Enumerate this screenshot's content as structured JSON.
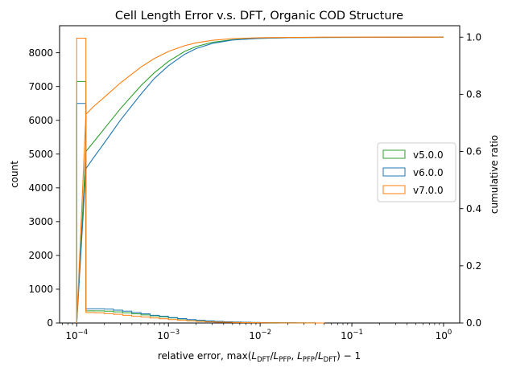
{
  "chart_data": {
    "type": "histogram",
    "title": "Cell Length Error v.s. DFT, Organic COD Structure",
    "xlabel": "relative error, max(L_DFT/L_PFP, L_PFP/L_DFT) − 1",
    "xlabel_parts": {
      "prefix": "relative error, max(",
      "L1": "L",
      "sub1": "DFT",
      "slash1": "/",
      "L2": "L",
      "sub2": "PFP",
      "comma": ", ",
      "L3": "L",
      "sub3": "PFP",
      "slash2": "/",
      "L4": "L",
      "sub4": "DFT",
      "suffix": ") − 1"
    },
    "ylabel": "count",
    "y2label": "cumulative ratio",
    "xscale": "log",
    "xlim": [
      6.5e-05,
      1.5
    ],
    "ylim": [
      0,
      8800
    ],
    "y2lim": [
      0,
      1.04
    ],
    "xticks": [
      {
        "value": 0.0001,
        "base": "10",
        "exp": "−4"
      },
      {
        "value": 0.001,
        "base": "10",
        "exp": "−3"
      },
      {
        "value": 0.01,
        "base": "10",
        "exp": "−2"
      },
      {
        "value": 0.1,
        "base": "10",
        "exp": "−1"
      },
      {
        "value": 1,
        "base": "10",
        "exp": "0"
      }
    ],
    "yticks": [
      0,
      1000,
      2000,
      3000,
      4000,
      5000,
      6000,
      7000,
      8000
    ],
    "y2ticks": [
      "0.0",
      "0.2",
      "0.4",
      "0.6",
      "0.8",
      "1.0"
    ],
    "y2tick_values": [
      0,
      0.2,
      0.4,
      0.6,
      0.8,
      1.0
    ],
    "legend_position": "center-right",
    "series": [
      {
        "name": "v5.0.0",
        "color": "#2ca02c",
        "hist_edges": [
          0.0001,
          0.0001259,
          0.0001585,
          0.0001995,
          0.0002512,
          0.0003162,
          0.0003981,
          0.0005012,
          0.000631,
          0.0007943,
          0.001,
          0.001259,
          0.001585,
          0.001995,
          0.002512,
          0.003162,
          0.003981,
          0.005012,
          0.00631,
          0.007943,
          0.01,
          0.01259,
          0.01585,
          0.01995,
          0.02512,
          0.03162,
          0.03981,
          0.05012
        ],
        "hist_counts": [
          7150,
          360,
          360,
          350,
          330,
          300,
          270,
          240,
          210,
          180,
          150,
          120,
          95,
          75,
          58,
          45,
          34,
          26,
          20,
          15,
          11,
          8,
          6,
          5,
          3,
          2,
          1
        ],
        "cdf_x": [
          0.0001,
          0.0001259,
          0.00015,
          0.0002,
          0.0003,
          0.0005,
          0.0007,
          0.001,
          0.0015,
          0.002,
          0.003,
          0.005,
          0.01,
          0.02,
          0.05,
          1
        ],
        "cdf_y": [
          0.0,
          0.6,
          0.63,
          0.68,
          0.75,
          0.83,
          0.875,
          0.915,
          0.95,
          0.967,
          0.982,
          0.991,
          0.996,
          0.998,
          0.999,
          1.0
        ]
      },
      {
        "name": "v6.0.0",
        "color": "#1f77b4",
        "hist_edges": [
          0.0001,
          0.0001259,
          0.0001585,
          0.0001995,
          0.0002512,
          0.0003162,
          0.0003981,
          0.0005012,
          0.000631,
          0.0007943,
          0.001,
          0.001259,
          0.001585,
          0.001995,
          0.002512,
          0.003162,
          0.003981,
          0.005012,
          0.00631,
          0.007943,
          0.01,
          0.01259,
          0.01585,
          0.01995,
          0.02512,
          0.03162,
          0.03981,
          0.05012
        ],
        "hist_counts": [
          6500,
          420,
          420,
          410,
          380,
          350,
          310,
          270,
          230,
          200,
          160,
          130,
          100,
          80,
          62,
          48,
          36,
          28,
          21,
          16,
          12,
          9,
          7,
          5,
          3,
          2,
          1
        ],
        "cdf_x": [
          0.0001,
          0.0001259,
          0.00015,
          0.0002,
          0.0003,
          0.0005,
          0.0007,
          0.001,
          0.0015,
          0.002,
          0.003,
          0.005,
          0.01,
          0.02,
          0.05,
          1
        ],
        "cdf_y": [
          0.0,
          0.54,
          0.575,
          0.63,
          0.71,
          0.8,
          0.855,
          0.9,
          0.94,
          0.96,
          0.978,
          0.99,
          0.996,
          0.998,
          0.999,
          1.0
        ]
      },
      {
        "name": "v7.0.0",
        "color": "#ff7f0e",
        "hist_edges": [
          0.0001,
          0.0001259,
          0.0001585,
          0.0001995,
          0.0002512,
          0.0003162,
          0.0003981,
          0.0005012,
          0.000631,
          0.0007943,
          0.001,
          0.001259,
          0.001585,
          0.001995,
          0.002512,
          0.003162,
          0.003981,
          0.005012,
          0.00631,
          0.007943,
          0.01,
          0.01259,
          0.01585,
          0.01995,
          0.02512,
          0.03162,
          0.03981,
          0.05012
        ],
        "hist_counts": [
          8430,
          310,
          300,
          280,
          260,
          230,
          200,
          175,
          150,
          125,
          100,
          80,
          62,
          48,
          37,
          28,
          21,
          16,
          12,
          9,
          7,
          5,
          4,
          3,
          2,
          1,
          1
        ],
        "cdf_x": [
          0.0001,
          0.0001259,
          0.00015,
          0.0002,
          0.0003,
          0.0005,
          0.0007,
          0.001,
          0.0015,
          0.002,
          0.003,
          0.005,
          0.01,
          0.02,
          0.05,
          1
        ],
        "cdf_y": [
          0.0,
          0.73,
          0.755,
          0.79,
          0.84,
          0.895,
          0.925,
          0.95,
          0.97,
          0.98,
          0.989,
          0.995,
          0.998,
          0.999,
          1.0,
          1.0
        ]
      }
    ]
  }
}
